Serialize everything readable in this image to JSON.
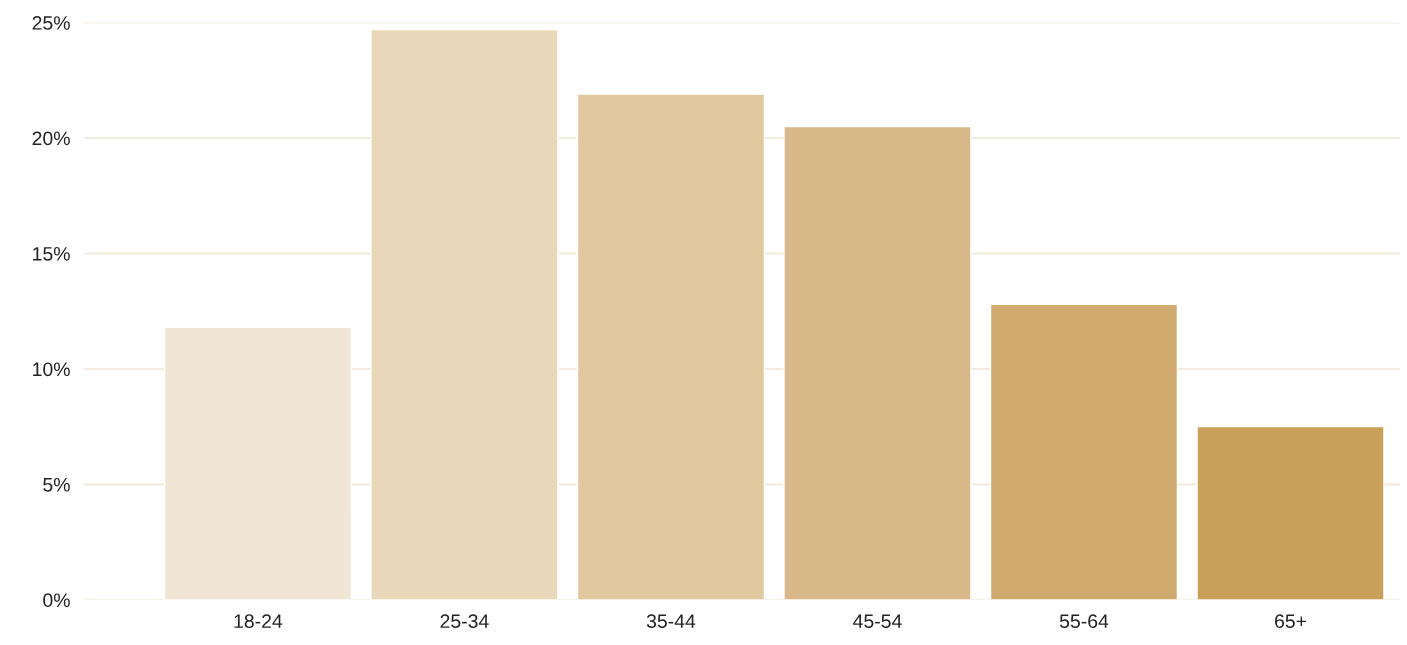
{
  "chart_data": {
    "type": "bar",
    "categories": [
      "18-24",
      "25-34",
      "35-44",
      "45-54",
      "55-64",
      "65+"
    ],
    "values": [
      11.8,
      24.7,
      21.9,
      20.5,
      12.8,
      7.5
    ],
    "colors": [
      "#f1e6d6",
      "#e8d7b8",
      "#e0c89e",
      "#d8b788",
      "#d0aa6e",
      "#c9a05a"
    ],
    "ylim": [
      0,
      25
    ],
    "yticks": [
      {
        "value": 0,
        "label": "0%"
      },
      {
        "value": 5,
        "label": "5%"
      },
      {
        "value": 10,
        "label": "10%"
      },
      {
        "value": 15,
        "label": "15%"
      },
      {
        "value": 20,
        "label": "20%"
      },
      {
        "value": 25,
        "label": "25%"
      }
    ],
    "grid": "y"
  }
}
